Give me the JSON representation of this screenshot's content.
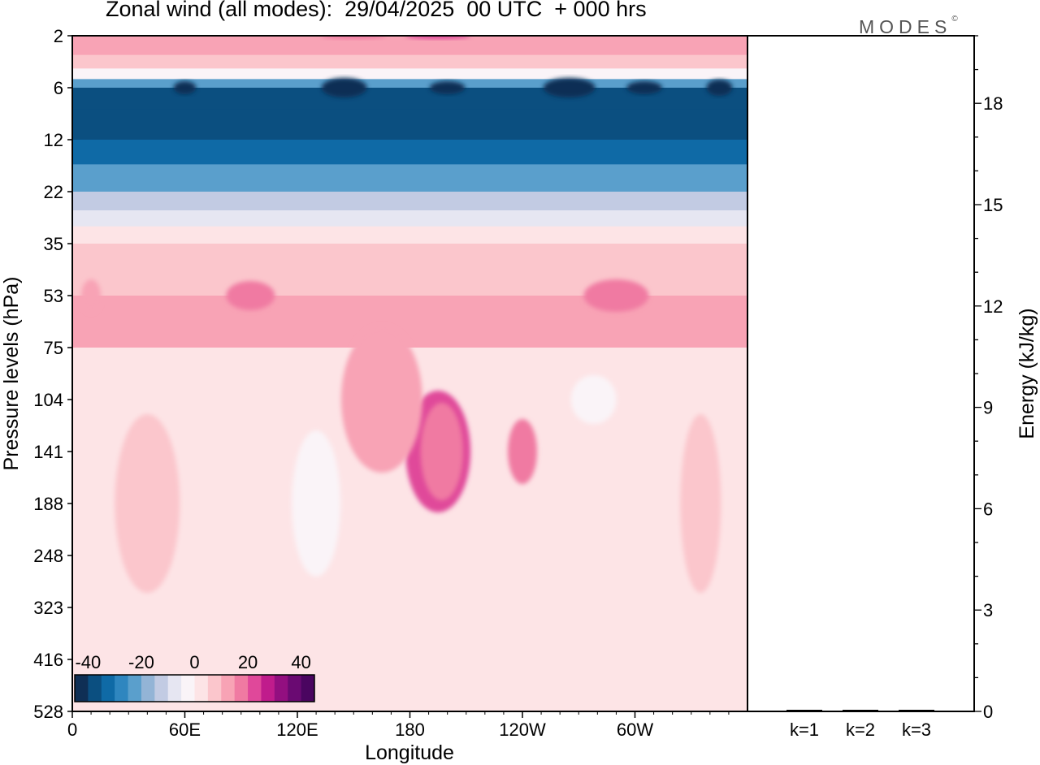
{
  "title": "Zonal wind (all modes):  29/04/2025  00 UTC  + 000 hrs",
  "logo": "MODES",
  "logo_mark": "©",
  "chart_data": [
    {
      "type": "heatmap",
      "xlabel": "Longitude",
      "ylabel": "Pressure levels (hPa)",
      "x_ticks": [
        "0",
        "60E",
        "120E",
        "180",
        "120W",
        "60W"
      ],
      "y_ticks": [
        "2",
        "6",
        "12",
        "22",
        "35",
        "53",
        "75",
        "104",
        "141",
        "188",
        "248",
        "323",
        "416",
        "528"
      ],
      "colorbar": {
        "labels": [
          "-40",
          "-20",
          "0",
          "20",
          "40"
        ],
        "range": [
          -45,
          45
        ],
        "step": 5,
        "colors": [
          "#0f2f55",
          "#0b4f80",
          "#0f6aa6",
          "#2f86bf",
          "#5a9fcc",
          "#93b4d6",
          "#c2cbe3",
          "#e6e6f2",
          "#faf4f8",
          "#fde4e6",
          "#fbc6cc",
          "#f8a3b5",
          "#f07aa2",
          "#e0489a",
          "#c01c8c",
          "#930f80",
          "#6a0a72",
          "#4a0560"
        ]
      },
      "bands": [
        {
          "level": "2",
          "value": 12
        },
        {
          "level": "3",
          "value": 8
        },
        {
          "level": "4",
          "value": -5
        },
        {
          "level": "5",
          "value": -25
        },
        {
          "level": "6",
          "value": -38
        },
        {
          "level": "8",
          "value": -37
        },
        {
          "level": "12",
          "value": -33
        },
        {
          "level": "16",
          "value": -24
        },
        {
          "level": "22",
          "value": -15
        },
        {
          "level": "26",
          "value": -8
        },
        {
          "level": "30",
          "value": 1
        },
        {
          "level": "35",
          "value": 6
        },
        {
          "level": "53",
          "value": 12
        },
        {
          "level": "75",
          "value": 4
        },
        {
          "level": "104",
          "value": 2
        },
        {
          "level": "141",
          "value": 4
        },
        {
          "level": "188",
          "value": 3
        },
        {
          "level": "248",
          "value": 2
        },
        {
          "level": "323",
          "value": 1
        },
        {
          "level": "416",
          "value": 0
        },
        {
          "level": "528",
          "value": -1
        }
      ],
      "features": [
        {
          "lon": 195,
          "level": "141",
          "value": 22,
          "lon_width": 60,
          "level_span": 6,
          "rx": 40,
          "ry": 75
        },
        {
          "lon": 197,
          "level": "141",
          "value": 18,
          "lon_width": 30,
          "level_span": 4,
          "rx": 26,
          "ry": 60
        },
        {
          "lon": 240,
          "level": "141",
          "value": 17,
          "lon_width": 25,
          "level_span": 3,
          "rx": 18,
          "ry": 40
        },
        {
          "lon": 165,
          "level": "104",
          "value": 10,
          "lon_width": 60,
          "level_span": 8,
          "rx": 50,
          "ry": 90
        },
        {
          "lon": 40,
          "level": "188",
          "value": 6,
          "lon_width": 50,
          "level_span": 5,
          "rx": 40,
          "ry": 110
        },
        {
          "lon": 335,
          "level": "188",
          "value": 8,
          "lon_width": 30,
          "level_span": 4,
          "rx": 25,
          "ry": 110
        },
        {
          "lon": 130,
          "level": "188",
          "value": -2,
          "lon_width": 30,
          "level_span": 4,
          "rx": 30,
          "ry": 90
        },
        {
          "lon": 278,
          "level": "104",
          "value": -3,
          "lon_width": 22,
          "level_span": 2,
          "rx": 28,
          "ry": 30
        },
        {
          "lon": 95,
          "level": "53",
          "value": 15,
          "lon_width": 30,
          "level_span": 2,
          "rx": 30,
          "ry": 18
        },
        {
          "lon": 290,
          "level": "53",
          "value": 15,
          "lon_width": 40,
          "level_span": 2,
          "rx": 40,
          "ry": 20
        },
        {
          "lon": 10,
          "level": "53",
          "value": 14,
          "lon_width": 15,
          "level_span": 2,
          "rx": 12,
          "ry": 20
        },
        {
          "lon": 60,
          "level": "6",
          "value": -42,
          "lon_width": 20,
          "level_span": 1,
          "rx": 14,
          "ry": 8
        },
        {
          "lon": 145,
          "level": "6",
          "value": -42,
          "lon_width": 35,
          "level_span": 1,
          "rx": 28,
          "ry": 12
        },
        {
          "lon": 200,
          "level": "6",
          "value": -42,
          "lon_width": 30,
          "level_span": 1,
          "rx": 22,
          "ry": 8
        },
        {
          "lon": 265,
          "level": "6",
          "value": -42,
          "lon_width": 40,
          "level_span": 1,
          "rx": 32,
          "ry": 12
        },
        {
          "lon": 305,
          "level": "6",
          "value": -42,
          "lon_width": 30,
          "level_span": 1,
          "rx": 22,
          "ry": 8
        },
        {
          "lon": 345,
          "level": "6",
          "value": -42,
          "lon_width": 20,
          "level_span": 1,
          "rx": 16,
          "ry": 10
        },
        {
          "lon": 195,
          "level": "2",
          "value": 22,
          "lon_width": 50,
          "level_span": 1,
          "rx": 40,
          "ry": 4
        },
        {
          "lon": 150,
          "level": "2",
          "value": 18,
          "lon_width": 50,
          "level_span": 1,
          "rx": 40,
          "ry": 4
        }
      ]
    },
    {
      "type": "bar",
      "categories": [
        "k=1",
        "k=2",
        "k=3"
      ],
      "values": [
        0.03,
        0.02,
        0.02
      ],
      "ylabel": "Energy (kJ/kg)",
      "ylim": [
        0,
        20
      ],
      "y_ticks": [
        0,
        3,
        6,
        9,
        12,
        15,
        18
      ]
    }
  ]
}
